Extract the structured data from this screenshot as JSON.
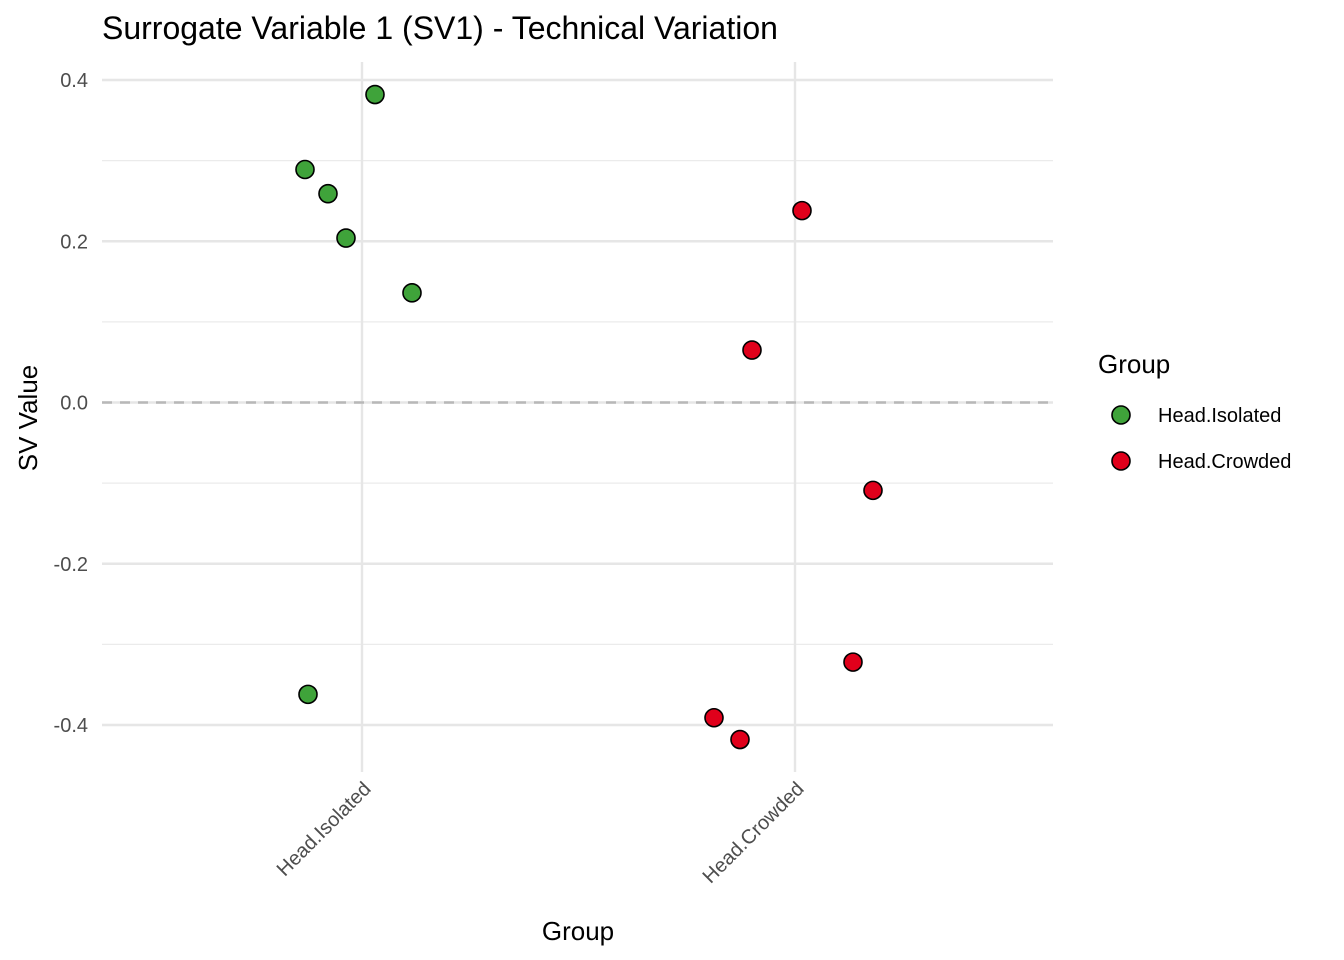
{
  "chart_data": {
    "type": "scatter",
    "title": "Surrogate Variable 1 (SV1) - Technical Variation",
    "xlabel": "Group",
    "ylabel": "SV Value",
    "categories": [
      "Head.Isolated",
      "Head.Crowded"
    ],
    "y_ticks": [
      "-0.4",
      "-0.2",
      "0.0",
      "0.2",
      "0.4"
    ],
    "y_tick_values": [
      -0.4,
      -0.2,
      0.0,
      0.2,
      0.4
    ],
    "ylim": [
      -0.44,
      0.42
    ],
    "grid": true,
    "reference_line": {
      "y": 0.0,
      "style": "dashed"
    },
    "legend": {
      "title": "Group",
      "placement": "right",
      "entries": [
        {
          "label": "Head.Isolated",
          "color": "#3fa33a"
        },
        {
          "label": "Head.Crowded",
          "color": "#e0001b"
        }
      ]
    },
    "series": [
      {
        "name": "Head.Isolated",
        "color": "#3fa33a",
        "points": [
          {
            "x": "Head.Isolated",
            "y": 0.382
          },
          {
            "x": "Head.Isolated",
            "y": 0.289
          },
          {
            "x": "Head.Isolated",
            "y": 0.259
          },
          {
            "x": "Head.Isolated",
            "y": 0.204
          },
          {
            "x": "Head.Isolated",
            "y": 0.136
          },
          {
            "x": "Head.Isolated",
            "y": -0.362
          }
        ]
      },
      {
        "name": "Head.Crowded",
        "color": "#e0001b",
        "points": [
          {
            "x": "Head.Crowded",
            "y": 0.238
          },
          {
            "x": "Head.Crowded",
            "y": 0.065
          },
          {
            "x": "Head.Crowded",
            "y": -0.109
          },
          {
            "x": "Head.Crowded",
            "y": -0.322
          },
          {
            "x": "Head.Crowded",
            "y": -0.391
          },
          {
            "x": "Head.Crowded",
            "y": -0.418
          }
        ]
      }
    ]
  }
}
